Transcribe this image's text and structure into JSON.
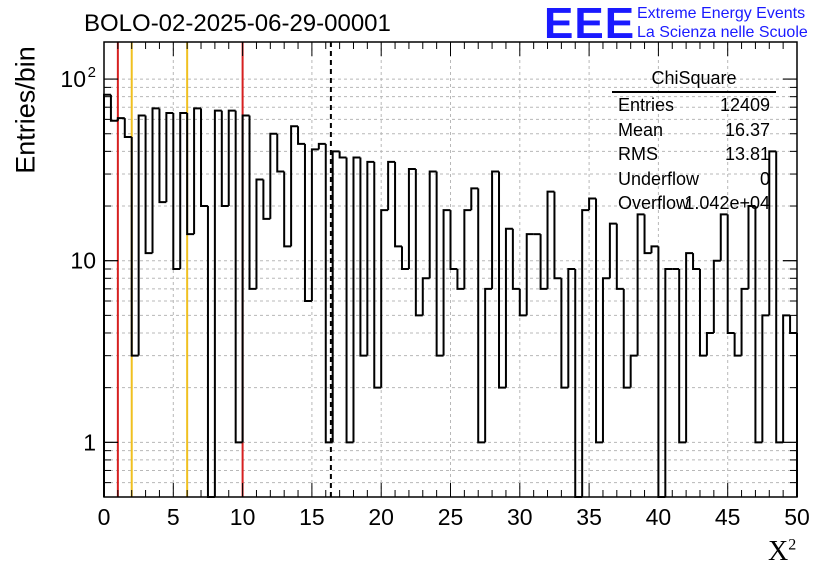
{
  "header": {
    "run_title": "BOLO-02-2025-06-29-00001",
    "logo_text": "EEE",
    "logo_line1": "Extreme Energy Events",
    "logo_line2": "La Scienza nelle Scuole"
  },
  "stats_box": {
    "title": "ChiSquare",
    "rows": [
      {
        "label": "Entries",
        "value": "12409"
      },
      {
        "label": "Mean",
        "value": "16.37"
      },
      {
        "label": "RMS",
        "value": "13.81"
      },
      {
        "label": "Underflow",
        "value": "0"
      },
      {
        "label": "Overflow",
        "value": "1.042e+04"
      }
    ]
  },
  "chart_data": {
    "type": "bar",
    "histogram": true,
    "ylabel": "Entries/bin",
    "xlabel": "X",
    "xlabel_superscript": "2",
    "xlim": [
      0,
      50
    ],
    "ylim": [
      0.5,
      160
    ],
    "yscale": "log",
    "grid": true,
    "bin_width": 0.5,
    "x_ticks": [
      "0",
      "5",
      "10",
      "15",
      "20",
      "25",
      "30",
      "35",
      "40",
      "45",
      "50"
    ],
    "y_ticks": [
      {
        "value": 1,
        "label": "1"
      },
      {
        "value": 10,
        "label": "10"
      },
      {
        "value": 100,
        "label": "10",
        "exponent": "2"
      }
    ],
    "bin_values": [
      82,
      59,
      61,
      48,
      3,
      63,
      11,
      69,
      21,
      65,
      9,
      65,
      14,
      69,
      20,
      0,
      67,
      20,
      67,
      1,
      63,
      7,
      28,
      17,
      50,
      31,
      12,
      55,
      44,
      6,
      41,
      44,
      1,
      40,
      37,
      1,
      37,
      3,
      35,
      2,
      19,
      35,
      12,
      9,
      32,
      5,
      8,
      31,
      3,
      19,
      9,
      7,
      19,
      25,
      1,
      7,
      31,
      2,
      15,
      7,
      5,
      14,
      14,
      7,
      24,
      8,
      2,
      9,
      0,
      19,
      22,
      1,
      8,
      16,
      7,
      2,
      3,
      18,
      11,
      12,
      0,
      9,
      9,
      1,
      11,
      9,
      3,
      4,
      10,
      18,
      4,
      3,
      7,
      20,
      1,
      5,
      40,
      1,
      5,
      4
    ],
    "markers": [
      {
        "x": 1,
        "color": "#d62020",
        "style": "solid"
      },
      {
        "x": 2,
        "color": "#f0c020",
        "style": "solid"
      },
      {
        "x": 6,
        "color": "#f0c020",
        "style": "solid"
      },
      {
        "x": 10,
        "color": "#d62020",
        "style": "solid"
      },
      {
        "x": 16.37,
        "color": "#000000",
        "style": "dashed"
      }
    ],
    "colors": {
      "line": "#000000",
      "grid": "#b8b8b8",
      "logo": "#1a1aff"
    }
  }
}
